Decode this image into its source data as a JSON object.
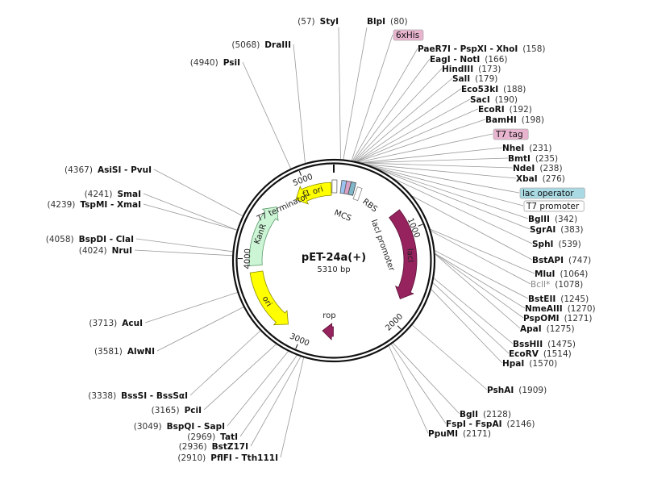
{
  "plasmid": {
    "name": "pET-24a(+)",
    "size_label": "5310 bp",
    "length": 5310
  },
  "ticks": [
    {
      "bp": 1000,
      "label": "1000"
    },
    {
      "bp": 2000,
      "label": "2000"
    },
    {
      "bp": 3000,
      "label": "3000"
    },
    {
      "bp": 4000,
      "label": "4000"
    },
    {
      "bp": 5000,
      "label": "5000"
    }
  ],
  "features": [
    {
      "name": "f1 ori",
      "start": 5280,
      "end": 4840,
      "color": "#ffff00",
      "stroke": "#8a8a00",
      "inside": true
    },
    {
      "name": "KanR",
      "start": 3930,
      "end": 4620,
      "color": "#ccf5d5",
      "stroke": "#5a9a6a",
      "inside": true
    },
    {
      "name": "ori",
      "start": 3860,
      "end": 3180,
      "color": "#ffff00",
      "stroke": "#8a8a00",
      "inside": true
    },
    {
      "name": "lacI",
      "start": 770,
      "end": 1770,
      "color": "#96235e",
      "stroke": "#5a1036",
      "inside": true
    },
    {
      "name": "rop",
      "start": 2660,
      "end": 2790,
      "color": "#96235e",
      "stroke": "#5a1036",
      "inside": false
    }
  ],
  "feature_labels": {
    "t7_terminator": "T7 terminator",
    "mcs": "MCS",
    "rbs": "RBS",
    "laci_promoter": "lacI promoter"
  },
  "sites": [
    {
      "name": "StyI",
      "pos": "(57)",
      "bp": 57,
      "side": "left"
    },
    {
      "name": "BlpI",
      "pos": "(80)",
      "bp": 80,
      "side": "right"
    },
    {
      "name": "6xHis",
      "bp": 150,
      "side": "box",
      "color": "#e8b4cf"
    },
    {
      "name": "PaeR7I - PspXI - XhoI",
      "pos": "(158)",
      "bp": 158,
      "side": "right"
    },
    {
      "name": "EagI - NotI",
      "pos": "(166)",
      "bp": 166,
      "side": "right"
    },
    {
      "name": "HindIII",
      "pos": "(173)",
      "bp": 173,
      "side": "right"
    },
    {
      "name": "SalI",
      "pos": "(179)",
      "bp": 179,
      "side": "right"
    },
    {
      "name": "Eco53kI",
      "pos": "(188)",
      "bp": 188,
      "side": "right"
    },
    {
      "name": "SacI",
      "pos": "(190)",
      "bp": 190,
      "side": "right"
    },
    {
      "name": "EcoRI",
      "pos": "(192)",
      "bp": 192,
      "side": "right"
    },
    {
      "name": "BamHI",
      "pos": "(198)",
      "bp": 198,
      "side": "right"
    },
    {
      "name": "T7 tag",
      "bp": 210,
      "side": "box",
      "color": "#e8b4cf"
    },
    {
      "name": "NheI",
      "pos": "(231)",
      "bp": 231,
      "side": "right"
    },
    {
      "name": "BmtI",
      "pos": "(235)",
      "bp": 235,
      "side": "right"
    },
    {
      "name": "NdeI",
      "pos": "(238)",
      "bp": 238,
      "side": "right"
    },
    {
      "name": "XbaI",
      "pos": "(276)",
      "bp": 276,
      "side": "right"
    },
    {
      "name": "lac operator",
      "bp": 300,
      "side": "box",
      "color": "#a9d9e3"
    },
    {
      "name": "T7 promoter",
      "bp": 330,
      "side": "box",
      "color": "#ffffff"
    },
    {
      "name": "BglII",
      "pos": "(342)",
      "bp": 342,
      "side": "right"
    },
    {
      "name": "SgrAI",
      "pos": "(383)",
      "bp": 383,
      "side": "right"
    },
    {
      "name": "SphI",
      "pos": "(539)",
      "bp": 539,
      "side": "right"
    },
    {
      "name": "BstAPI",
      "pos": "(747)",
      "bp": 747,
      "side": "right"
    },
    {
      "name": "MluI",
      "pos": "(1064)",
      "bp": 1064,
      "side": "right"
    },
    {
      "name": "BclI*",
      "pos": "(1078)",
      "bp": 1078,
      "side": "right",
      "gray": true
    },
    {
      "name": "BstEII",
      "pos": "(1245)",
      "bp": 1245,
      "side": "right"
    },
    {
      "name": "NmeAIII",
      "pos": "(1270)",
      "bp": 1270,
      "side": "right"
    },
    {
      "name": "PspOMI",
      "pos": "(1271)",
      "bp": 1271,
      "side": "right"
    },
    {
      "name": "ApaI",
      "pos": "(1275)",
      "bp": 1275,
      "side": "right"
    },
    {
      "name": "BssHII",
      "pos": "(1475)",
      "bp": 1475,
      "side": "right"
    },
    {
      "name": "EcoRV",
      "pos": "(1514)",
      "bp": 1514,
      "side": "right"
    },
    {
      "name": "HpaI",
      "pos": "(1570)",
      "bp": 1570,
      "side": "right"
    },
    {
      "name": "PshAI",
      "pos": "(1909)",
      "bp": 1909,
      "side": "right"
    },
    {
      "name": "BglI",
      "pos": "(2128)",
      "bp": 2128,
      "side": "right"
    },
    {
      "name": "FspI - FspAI",
      "pos": "(2146)",
      "bp": 2146,
      "side": "right"
    },
    {
      "name": "PpuMI",
      "pos": "(2171)",
      "bp": 2171,
      "side": "right"
    },
    {
      "name": "PflFI - Tth111I",
      "pos": "(2910)",
      "bp": 2910,
      "side": "left"
    },
    {
      "name": "BstZ17I",
      "pos": "(2936)",
      "bp": 2936,
      "side": "left"
    },
    {
      "name": "TatI",
      "pos": "(2969)",
      "bp": 2969,
      "side": "left"
    },
    {
      "name": "BspQI - SapI",
      "pos": "(3049)",
      "bp": 3049,
      "side": "left"
    },
    {
      "name": "PciI",
      "pos": "(3165)",
      "bp": 3165,
      "side": "left"
    },
    {
      "name": "BssSI - BssSαI",
      "pos": "(3338)",
      "bp": 3338,
      "side": "left"
    },
    {
      "name": "AlwNI",
      "pos": "(3581)",
      "bp": 3581,
      "side": "left"
    },
    {
      "name": "AcuI",
      "pos": "(3713)",
      "bp": 3713,
      "side": "left"
    },
    {
      "name": "NruI",
      "pos": "(4024)",
      "bp": 4024,
      "side": "left"
    },
    {
      "name": "BspDI - ClaI",
      "pos": "(4058)",
      "bp": 4058,
      "side": "left"
    },
    {
      "name": "TspMI - XmaI",
      "pos": "(4239)",
      "bp": 4239,
      "side": "left"
    },
    {
      "name": "SmaI",
      "pos": "(4241)",
      "bp": 4241,
      "side": "left"
    },
    {
      "name": "AsiSI - PvuI",
      "pos": "(4367)",
      "bp": 4367,
      "side": "left"
    },
    {
      "name": "PsiI",
      "pos": "(4940)",
      "bp": 4940,
      "side": "left"
    },
    {
      "name": "DraIII",
      "pos": "(5068)",
      "bp": 5068,
      "side": "left"
    }
  ]
}
